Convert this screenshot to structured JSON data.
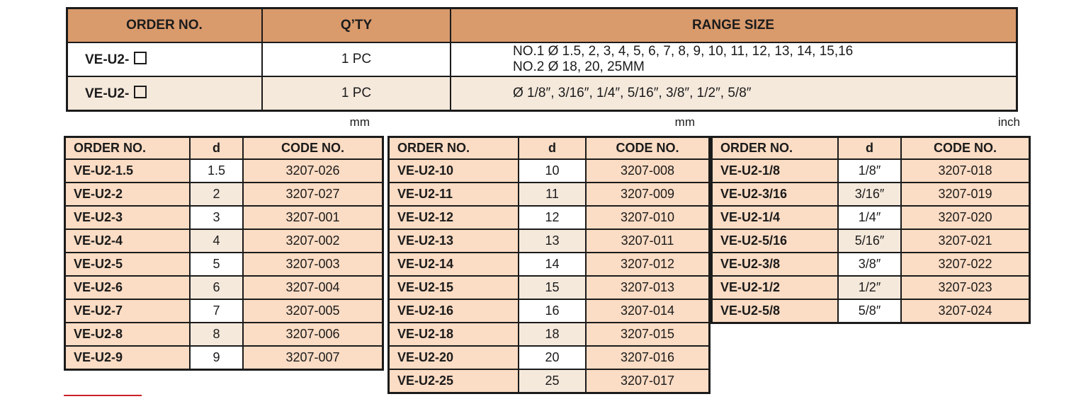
{
  "colors": {
    "header_bg": "#d99a6c",
    "cell_peach": "#fbdcc4",
    "cell_cream": "#f5e9dc",
    "cell_white": "#ffffff",
    "border": "#1b1b1b",
    "red_mark": "#cc2127"
  },
  "top_table": {
    "headers": [
      "ORDER NO.",
      "Q’TY",
      "RANGE SIZE"
    ],
    "rows": [
      {
        "order_no_prefix": "VE-U2-",
        "order_no_box": "□",
        "qty": "1 PC",
        "range_lines": [
          "NO.1 Ø 1.5, 2, 3, 4, 5, 6, 7, 8, 9, 10, 11, 12, 13, 14, 15,16",
          "NO.2 Ø 18, 20, 25MM"
        ]
      },
      {
        "order_no_prefix": "VE-U2-",
        "order_no_box": "□",
        "qty": "1 PC",
        "range_lines": [
          "Ø 1/8″, 3/16″, 1/4″, 5/16″, 3/8″, 1/2″, 5/8″"
        ]
      }
    ]
  },
  "unit_labels": [
    "mm",
    "mm",
    "inch"
  ],
  "size_tables": [
    {
      "unit": "mm",
      "headers": [
        "ORDER NO.",
        "d",
        "CODE NO."
      ],
      "rows": [
        [
          "VE-U2-1.5",
          "1.5",
          "3207-026"
        ],
        [
          "VE-U2-2",
          "2",
          "3207-027"
        ],
        [
          "VE-U2-3",
          "3",
          "3207-001"
        ],
        [
          "VE-U2-4",
          "4",
          "3207-002"
        ],
        [
          "VE-U2-5",
          "5",
          "3207-003"
        ],
        [
          "VE-U2-6",
          "6",
          "3207-004"
        ],
        [
          "VE-U2-7",
          "7",
          "3207-005"
        ],
        [
          "VE-U2-8",
          "8",
          "3207-006"
        ],
        [
          "VE-U2-9",
          "9",
          "3207-007"
        ]
      ]
    },
    {
      "unit": "mm",
      "headers": [
        "ORDER NO.",
        "d",
        "CODE NO."
      ],
      "rows": [
        [
          "VE-U2-10",
          "10",
          "3207-008"
        ],
        [
          "VE-U2-11",
          "11",
          "3207-009"
        ],
        [
          "VE-U2-12",
          "12",
          "3207-010"
        ],
        [
          "VE-U2-13",
          "13",
          "3207-011"
        ],
        [
          "VE-U2-14",
          "14",
          "3207-012"
        ],
        [
          "VE-U2-15",
          "15",
          "3207-013"
        ],
        [
          "VE-U2-16",
          "16",
          "3207-014"
        ],
        [
          "VE-U2-18",
          "18",
          "3207-015"
        ],
        [
          "VE-U2-20",
          "20",
          "3207-016"
        ],
        [
          "VE-U2-25",
          "25",
          "3207-017"
        ]
      ]
    },
    {
      "unit": "inch",
      "headers": [
        "ORDER NO.",
        "d",
        "CODE NO."
      ],
      "rows": [
        [
          "VE-U2-1/8",
          "1/8″",
          "3207-018"
        ],
        [
          "VE-U2-3/16",
          "3/16″",
          "3207-019"
        ],
        [
          "VE-U2-1/4",
          "1/4″",
          "3207-020"
        ],
        [
          "VE-U2-5/16",
          "5/16″",
          "3207-021"
        ],
        [
          "VE-U2-3/8",
          "3/8″",
          "3207-022"
        ],
        [
          "VE-U2-1/2",
          "1/2″",
          "3207-023"
        ],
        [
          "VE-U2-5/8",
          "5/8″",
          "3207-024"
        ]
      ]
    }
  ]
}
